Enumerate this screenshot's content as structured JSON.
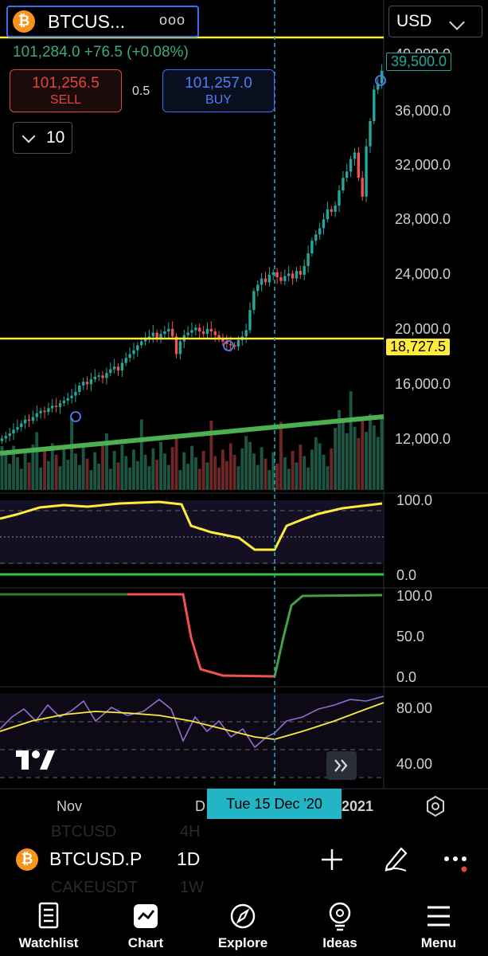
{
  "header": {
    "symbol": "BTCUS...",
    "more": "ooo",
    "currency": "USD",
    "quote_line": "101,284.0 +76.5 (+0.08%)",
    "btc_glyph": "₿"
  },
  "trade": {
    "sell_price": "101,256.5",
    "sell_label": "SELL",
    "spread": "0.5",
    "buy_price": "101,257.0",
    "buy_label": "BUY",
    "quantity": "10"
  },
  "price_axis": {
    "labels": [
      "40,000.0",
      "36,000.0",
      "32,000.0",
      "28,000.0",
      "24,000.0",
      "20,000.0",
      "16,000.0",
      "12,000.0"
    ],
    "current_price_tag": "39,500.0",
    "hline_tag": "18,727.5"
  },
  "indicator_axes": {
    "pane1": [
      "100.0",
      "0.0"
    ],
    "pane2": [
      "100.0",
      "50.0",
      "0.0"
    ],
    "pane3": [
      "80.00",
      "40.00"
    ]
  },
  "time_axis": {
    "labels": [
      "Nov",
      "D",
      "2021"
    ],
    "crosshair_date": "Tue 15 Dec '20"
  },
  "toolbar": {
    "symbol": "BTCUSD.P",
    "interval": "1D",
    "ghost_rows": [
      "BTCUSD",
      "4H",
      "CAKEUSDT",
      "1W"
    ]
  },
  "tabs": [
    {
      "label": "Watchlist",
      "icon": "watchlist-icon"
    },
    {
      "label": "Chart",
      "icon": "chart-icon"
    },
    {
      "label": "Explore",
      "icon": "compass-icon"
    },
    {
      "label": "Ideas",
      "icon": "lightbulb-icon"
    },
    {
      "label": "Menu",
      "icon": "menu-icon"
    }
  ],
  "colors": {
    "up": "#26a69a",
    "down": "#ef5350",
    "hline": "#ffeb3b",
    "trendline": "#4caf50",
    "crosshair": "#22b5c5",
    "accent_blue": "#3b6ef5"
  },
  "chart_data": {
    "type": "candlestick",
    "ylim": [
      10000,
      41000
    ],
    "horizontal_levels": [
      18727.5,
      39500
    ],
    "closes": [
      10800,
      11000,
      11200,
      11500,
      11700,
      12000,
      12300,
      12200,
      12500,
      12800,
      13000,
      12900,
      13200,
      13400,
      13300,
      13600,
      13800,
      14000,
      14200,
      14500,
      15000,
      15300,
      15100,
      15500,
      15700,
      15800,
      15600,
      16000,
      16300,
      16500,
      16200,
      16800,
      17200,
      17500,
      17800,
      18200,
      18500,
      18800,
      18900,
      19200,
      18700,
      19100,
      19300,
      19500,
      18900,
      17500,
      18500,
      19000,
      19200,
      19400,
      19600,
      19300,
      19100,
      19500,
      19300,
      19000,
      18700,
      18500,
      18300,
      18200,
      18100,
      18600,
      18900,
      19400,
      21000,
      22500,
      23000,
      23500,
      23200,
      23800,
      24000,
      23600,
      23300,
      23700,
      23900,
      23500,
      24100,
      23800,
      24500,
      25500,
      26500,
      27000,
      27500,
      28200,
      29000,
      28800,
      29300,
      30500,
      31500,
      32000,
      33000,
      33500,
      31500,
      30000,
      34000,
      36000,
      38500,
      39000,
      40000
    ]
  }
}
